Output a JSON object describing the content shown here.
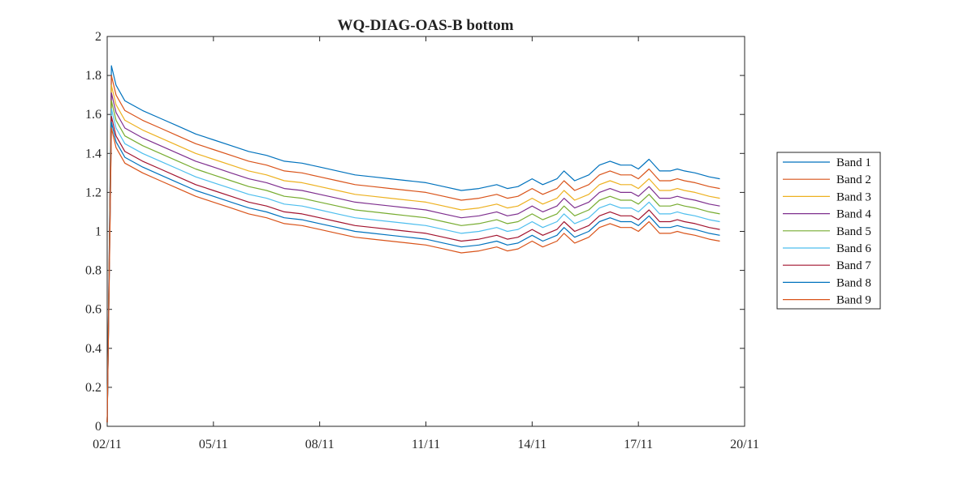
{
  "chart_data": {
    "type": "line",
    "title": "WQ-DIAG-OAS-B bottom",
    "xlabel": "",
    "ylabel": "",
    "xlim": [
      0,
      18
    ],
    "ylim": [
      0,
      2
    ],
    "x_ticks": [
      {
        "value": 0,
        "label": "02/11"
      },
      {
        "value": 3,
        "label": "05/11"
      },
      {
        "value": 6,
        "label": "08/11"
      },
      {
        "value": 9,
        "label": "11/11"
      },
      {
        "value": 12,
        "label": "14/11"
      },
      {
        "value": 15,
        "label": "17/11"
      },
      {
        "value": 18,
        "label": "20/11"
      }
    ],
    "y_ticks": [
      {
        "value": 0,
        "label": "0"
      },
      {
        "value": 0.2,
        "label": "0.2"
      },
      {
        "value": 0.4,
        "label": "0.4"
      },
      {
        "value": 0.6,
        "label": "0.6"
      },
      {
        "value": 0.8,
        "label": "0.8"
      },
      {
        "value": 1,
        "label": "1"
      },
      {
        "value": 1.2,
        "label": "1.2"
      },
      {
        "value": 1.4,
        "label": "1.4"
      },
      {
        "value": 1.6,
        "label": "1.6"
      },
      {
        "value": 1.8,
        "label": "1.8"
      },
      {
        "value": 2,
        "label": "2"
      }
    ],
    "grid": false,
    "legend_position": "outside-right",
    "x": [
      0,
      0.12,
      0.25,
      0.5,
      1,
      1.5,
      2,
      2.5,
      3,
      3.5,
      4,
      4.5,
      5,
      5.5,
      6,
      6.5,
      7,
      7.5,
      8,
      8.5,
      9,
      9.5,
      10,
      10.5,
      11,
      11.3,
      11.6,
      12,
      12.3,
      12.7,
      12.9,
      13.2,
      13.6,
      13.9,
      14.2,
      14.5,
      14.8,
      15,
      15.3,
      15.6,
      15.9,
      16.1,
      16.3,
      16.6,
      17,
      17.3
    ],
    "base_band1": [
      0.02,
      1.85,
      1.75,
      1.67,
      1.62,
      1.58,
      1.54,
      1.5,
      1.47,
      1.44,
      1.41,
      1.39,
      1.36,
      1.35,
      1.33,
      1.31,
      1.29,
      1.28,
      1.27,
      1.26,
      1.25,
      1.23,
      1.21,
      1.22,
      1.24,
      1.22,
      1.23,
      1.27,
      1.24,
      1.27,
      1.31,
      1.26,
      1.29,
      1.34,
      1.36,
      1.34,
      1.34,
      1.32,
      1.37,
      1.31,
      1.31,
      1.32,
      1.31,
      1.3,
      1.28,
      1.27
    ],
    "series": [
      {
        "name": "Band 1",
        "color": "#0072BD",
        "offset": 0
      },
      {
        "name": "Band 2",
        "color": "#D95319",
        "offset": -0.05
      },
      {
        "name": "Band 3",
        "color": "#EDB120",
        "offset": -0.1
      },
      {
        "name": "Band 4",
        "color": "#7E2F8E",
        "offset": -0.14
      },
      {
        "name": "Band 5",
        "color": "#77AC30",
        "offset": -0.18
      },
      {
        "name": "Band 6",
        "color": "#4DBEEE",
        "offset": -0.22
      },
      {
        "name": "Band 7",
        "color": "#A2142F",
        "offset": -0.26
      },
      {
        "name": "Band 8",
        "color": "#0072BD",
        "offset": -0.29
      },
      {
        "name": "Band 9",
        "color": "#D95319",
        "offset": -0.32
      }
    ]
  }
}
